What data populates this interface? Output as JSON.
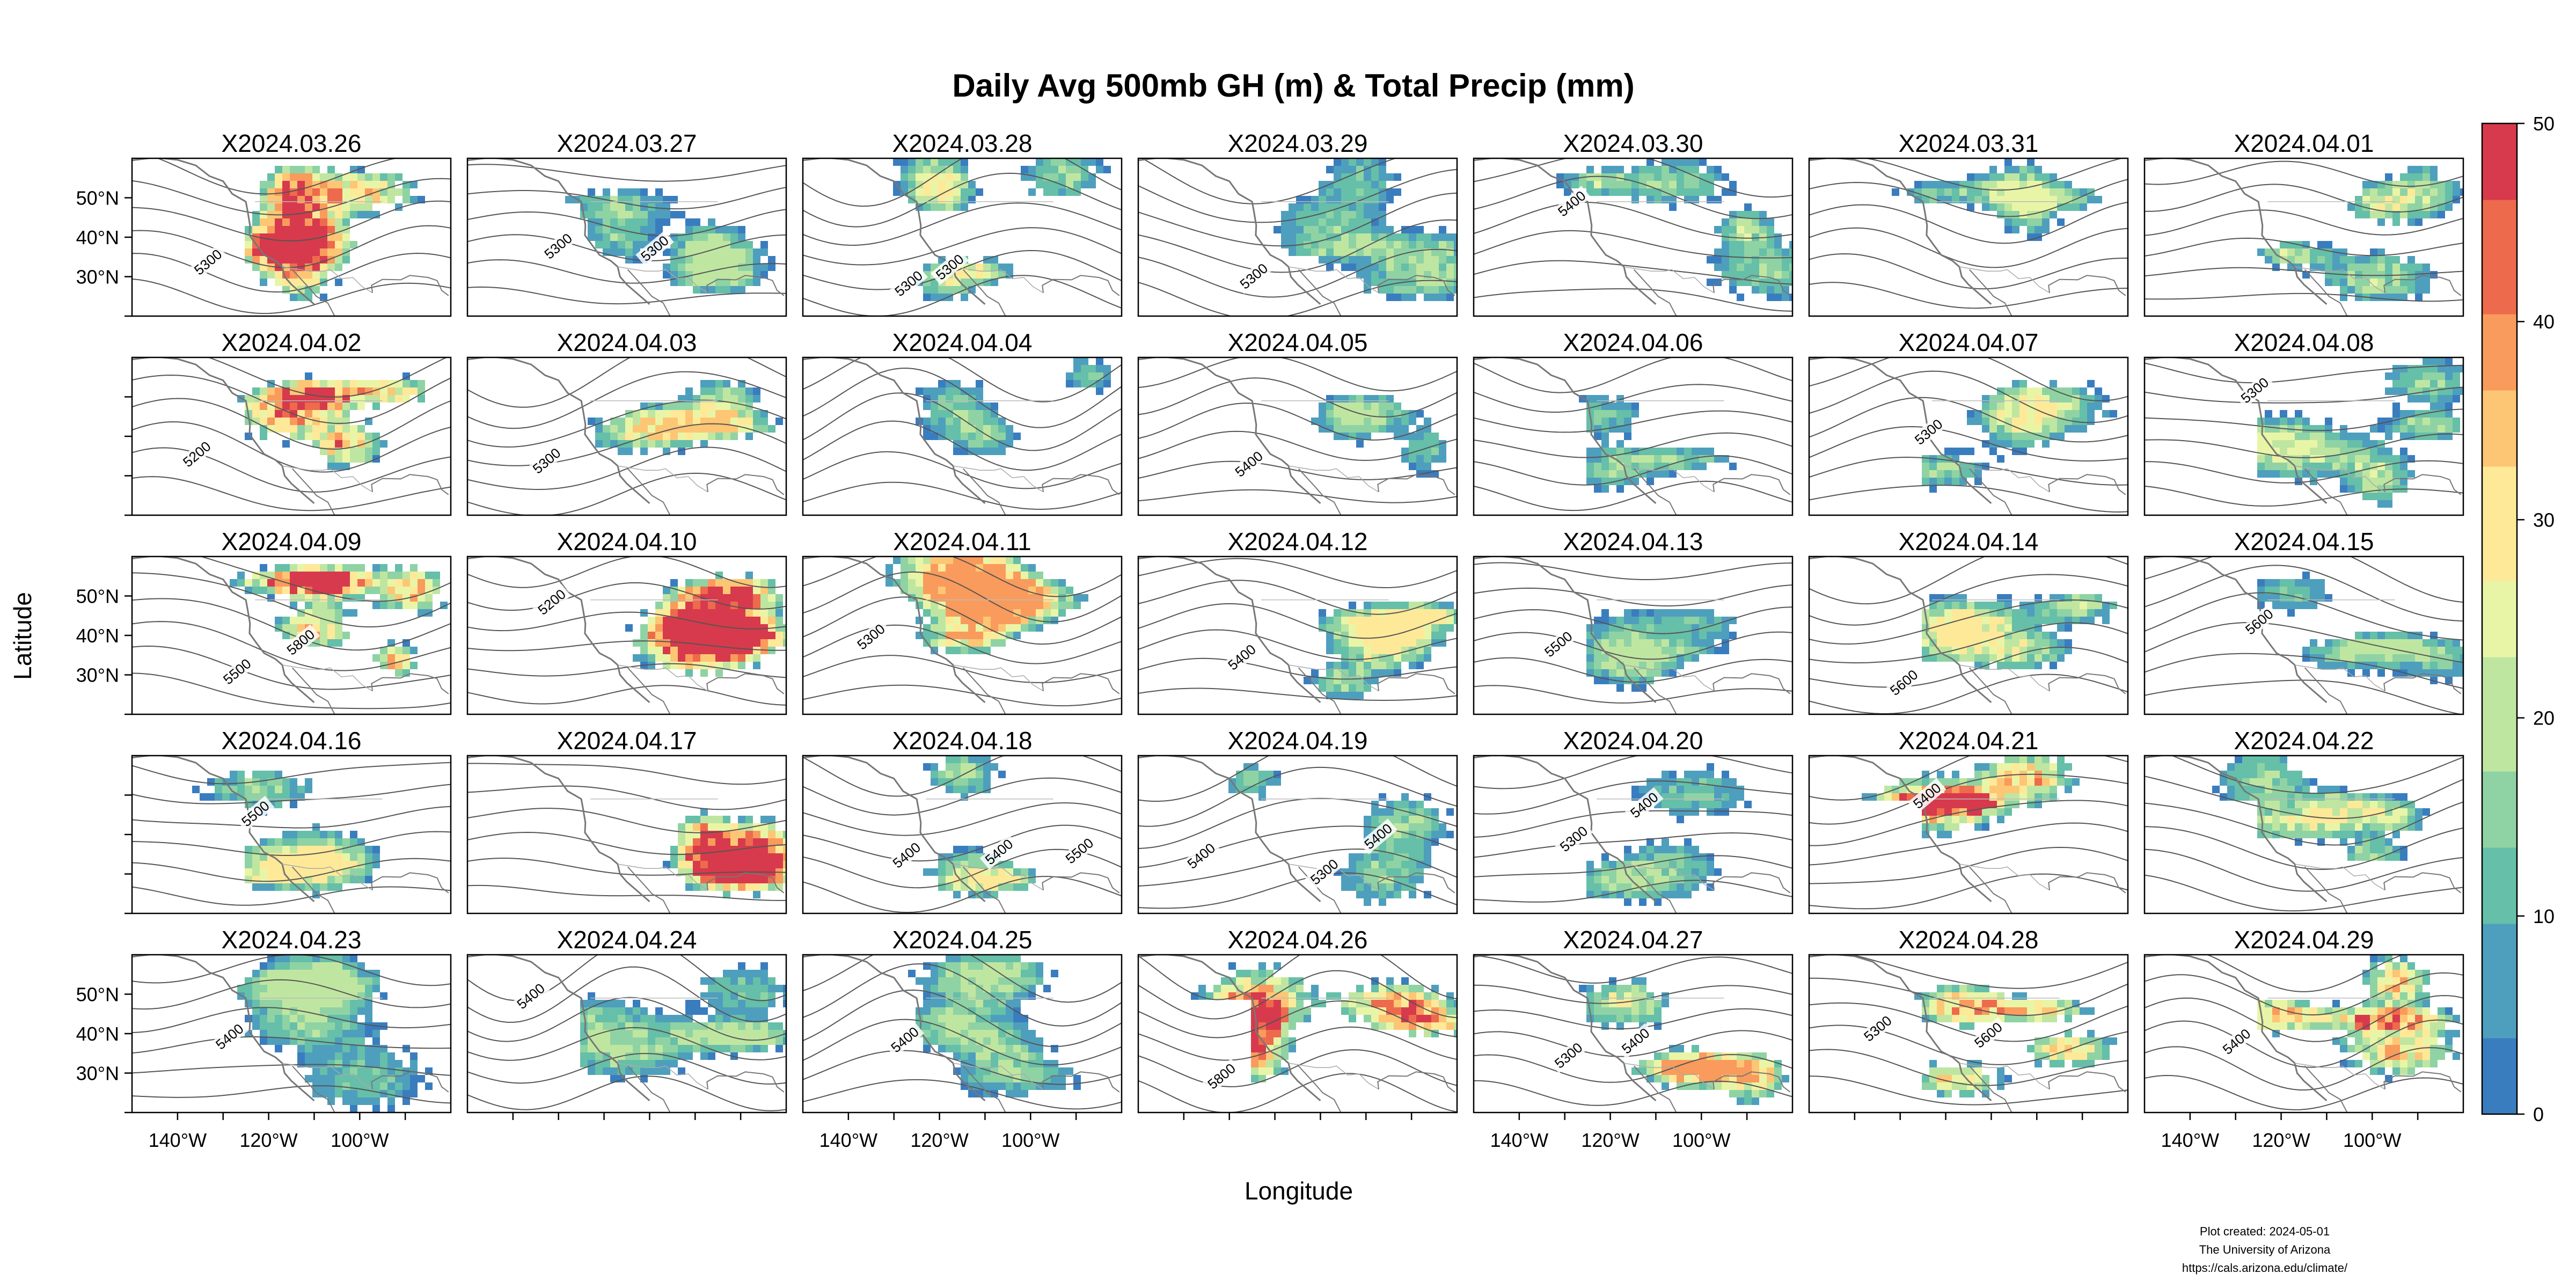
{
  "chart_data": {
    "type": "heatmap",
    "title": "Daily Avg 500mb GH (m) & Total Precip (mm)",
    "xlabel": "Longitude",
    "ylabel": "Latitude",
    "layout": {
      "rows": 5,
      "cols": 7
    },
    "xlim": [
      -150,
      -80
    ],
    "ylim": [
      20,
      60
    ],
    "x_ticks": [
      -140,
      -120,
      -100
    ],
    "x_tick_labels": [
      "140°W",
      "120°W",
      "100°W"
    ],
    "y_ticks": [
      30,
      40,
      50
    ],
    "y_tick_labels": [
      "30°N",
      "40°N",
      "50°N"
    ],
    "colorbar": {
      "min": 0,
      "max": 50,
      "ticks": [
        0,
        10,
        20,
        30,
        40,
        50
      ],
      "tick_labels": [
        "0",
        "10",
        "20",
        "30",
        "40",
        "50"
      ],
      "palette": [
        "#3a7dbf",
        "#4e9fbd",
        "#66bfa8",
        "#8fd3a4",
        "#bfe6a1",
        "#e9f5a6",
        "#fee999",
        "#fdc674",
        "#f99b5c",
        "#ee6a4c",
        "#d73a4c"
      ]
    },
    "contour_color": "#555555",
    "coast_color": "#777777",
    "panels": [
      {
        "date": "X2024.03.26",
        "contour_labels": [
          "5300"
        ],
        "precip_max": 50
      },
      {
        "date": "X2024.03.27",
        "contour_labels": [
          "5300",
          "5300"
        ],
        "precip_max": 22
      },
      {
        "date": "X2024.03.28",
        "contour_labels": [
          "5300",
          "5300"
        ],
        "precip_max": 28
      },
      {
        "date": "X2024.03.29",
        "contour_labels": [
          "5300"
        ],
        "precip_max": 20
      },
      {
        "date": "X2024.03.30",
        "contour_labels": [
          "5400"
        ],
        "precip_max": 26
      },
      {
        "date": "X2024.03.31",
        "contour_labels": [],
        "precip_max": 24
      },
      {
        "date": "X2024.04.01",
        "contour_labels": [],
        "precip_max": 30
      },
      {
        "date": "X2024.04.02",
        "contour_labels": [
          "5200"
        ],
        "precip_max": 50
      },
      {
        "date": "X2024.04.03",
        "contour_labels": [
          "5300"
        ],
        "precip_max": 32
      },
      {
        "date": "X2024.04.04",
        "contour_labels": [],
        "precip_max": 22
      },
      {
        "date": "X2024.04.05",
        "contour_labels": [
          "5400"
        ],
        "precip_max": 22
      },
      {
        "date": "X2024.04.06",
        "contour_labels": [],
        "precip_max": 22
      },
      {
        "date": "X2024.04.07",
        "contour_labels": [
          "5300"
        ],
        "precip_max": 28
      },
      {
        "date": "X2024.04.08",
        "contour_labels": [
          "5300"
        ],
        "precip_max": 26
      },
      {
        "date": "X2024.04.09",
        "contour_labels": [
          "5500",
          "5800"
        ],
        "precip_max": 50
      },
      {
        "date": "X2024.04.10",
        "contour_labels": [
          "5200"
        ],
        "precip_max": 50
      },
      {
        "date": "X2024.04.11",
        "contour_labels": [
          "5300"
        ],
        "precip_max": 40
      },
      {
        "date": "X2024.04.12",
        "contour_labels": [
          "5400"
        ],
        "precip_max": 28
      },
      {
        "date": "X2024.04.13",
        "contour_labels": [
          "5500"
        ],
        "precip_max": 20
      },
      {
        "date": "X2024.04.14",
        "contour_labels": [
          "5600"
        ],
        "precip_max": 28
      },
      {
        "date": "X2024.04.15",
        "contour_labels": [
          "5600"
        ],
        "precip_max": 22
      },
      {
        "date": "X2024.04.16",
        "contour_labels": [
          "5500"
        ],
        "precip_max": 28
      },
      {
        "date": "X2024.04.17",
        "contour_labels": [],
        "precip_max": 50
      },
      {
        "date": "X2024.04.18",
        "contour_labels": [
          "5400",
          "5400",
          "5500"
        ],
        "precip_max": 30
      },
      {
        "date": "X2024.04.19",
        "contour_labels": [
          "5400",
          "5300",
          "5400"
        ],
        "precip_max": 26
      },
      {
        "date": "X2024.04.20",
        "contour_labels": [
          "5300",
          "5400"
        ],
        "precip_max": 22
      },
      {
        "date": "X2024.04.21",
        "contour_labels": [
          "5400"
        ],
        "precip_max": 50
      },
      {
        "date": "X2024.04.22",
        "contour_labels": [],
        "precip_max": 30
      },
      {
        "date": "X2024.04.23",
        "contour_labels": [
          "5400"
        ],
        "precip_max": 22
      },
      {
        "date": "X2024.04.24",
        "contour_labels": [
          "5400"
        ],
        "precip_max": 22
      },
      {
        "date": "X2024.04.25",
        "contour_labels": [
          "5400"
        ],
        "precip_max": 22
      },
      {
        "date": "X2024.04.26",
        "contour_labels": [
          "5800"
        ],
        "precip_max": 50
      },
      {
        "date": "X2024.04.27",
        "contour_labels": [
          "5300",
          "5400"
        ],
        "precip_max": 40
      },
      {
        "date": "X2024.04.28",
        "contour_labels": [
          "5300",
          "5600"
        ],
        "precip_max": 50
      },
      {
        "date": "X2024.04.29",
        "contour_labels": [
          "5400"
        ],
        "precip_max": 50
      }
    ]
  },
  "credits": {
    "line1": "Plot created: 2024-05-01",
    "line2": "The University of Arizona",
    "line3": "https://cals.arizona.edu/climate/"
  }
}
